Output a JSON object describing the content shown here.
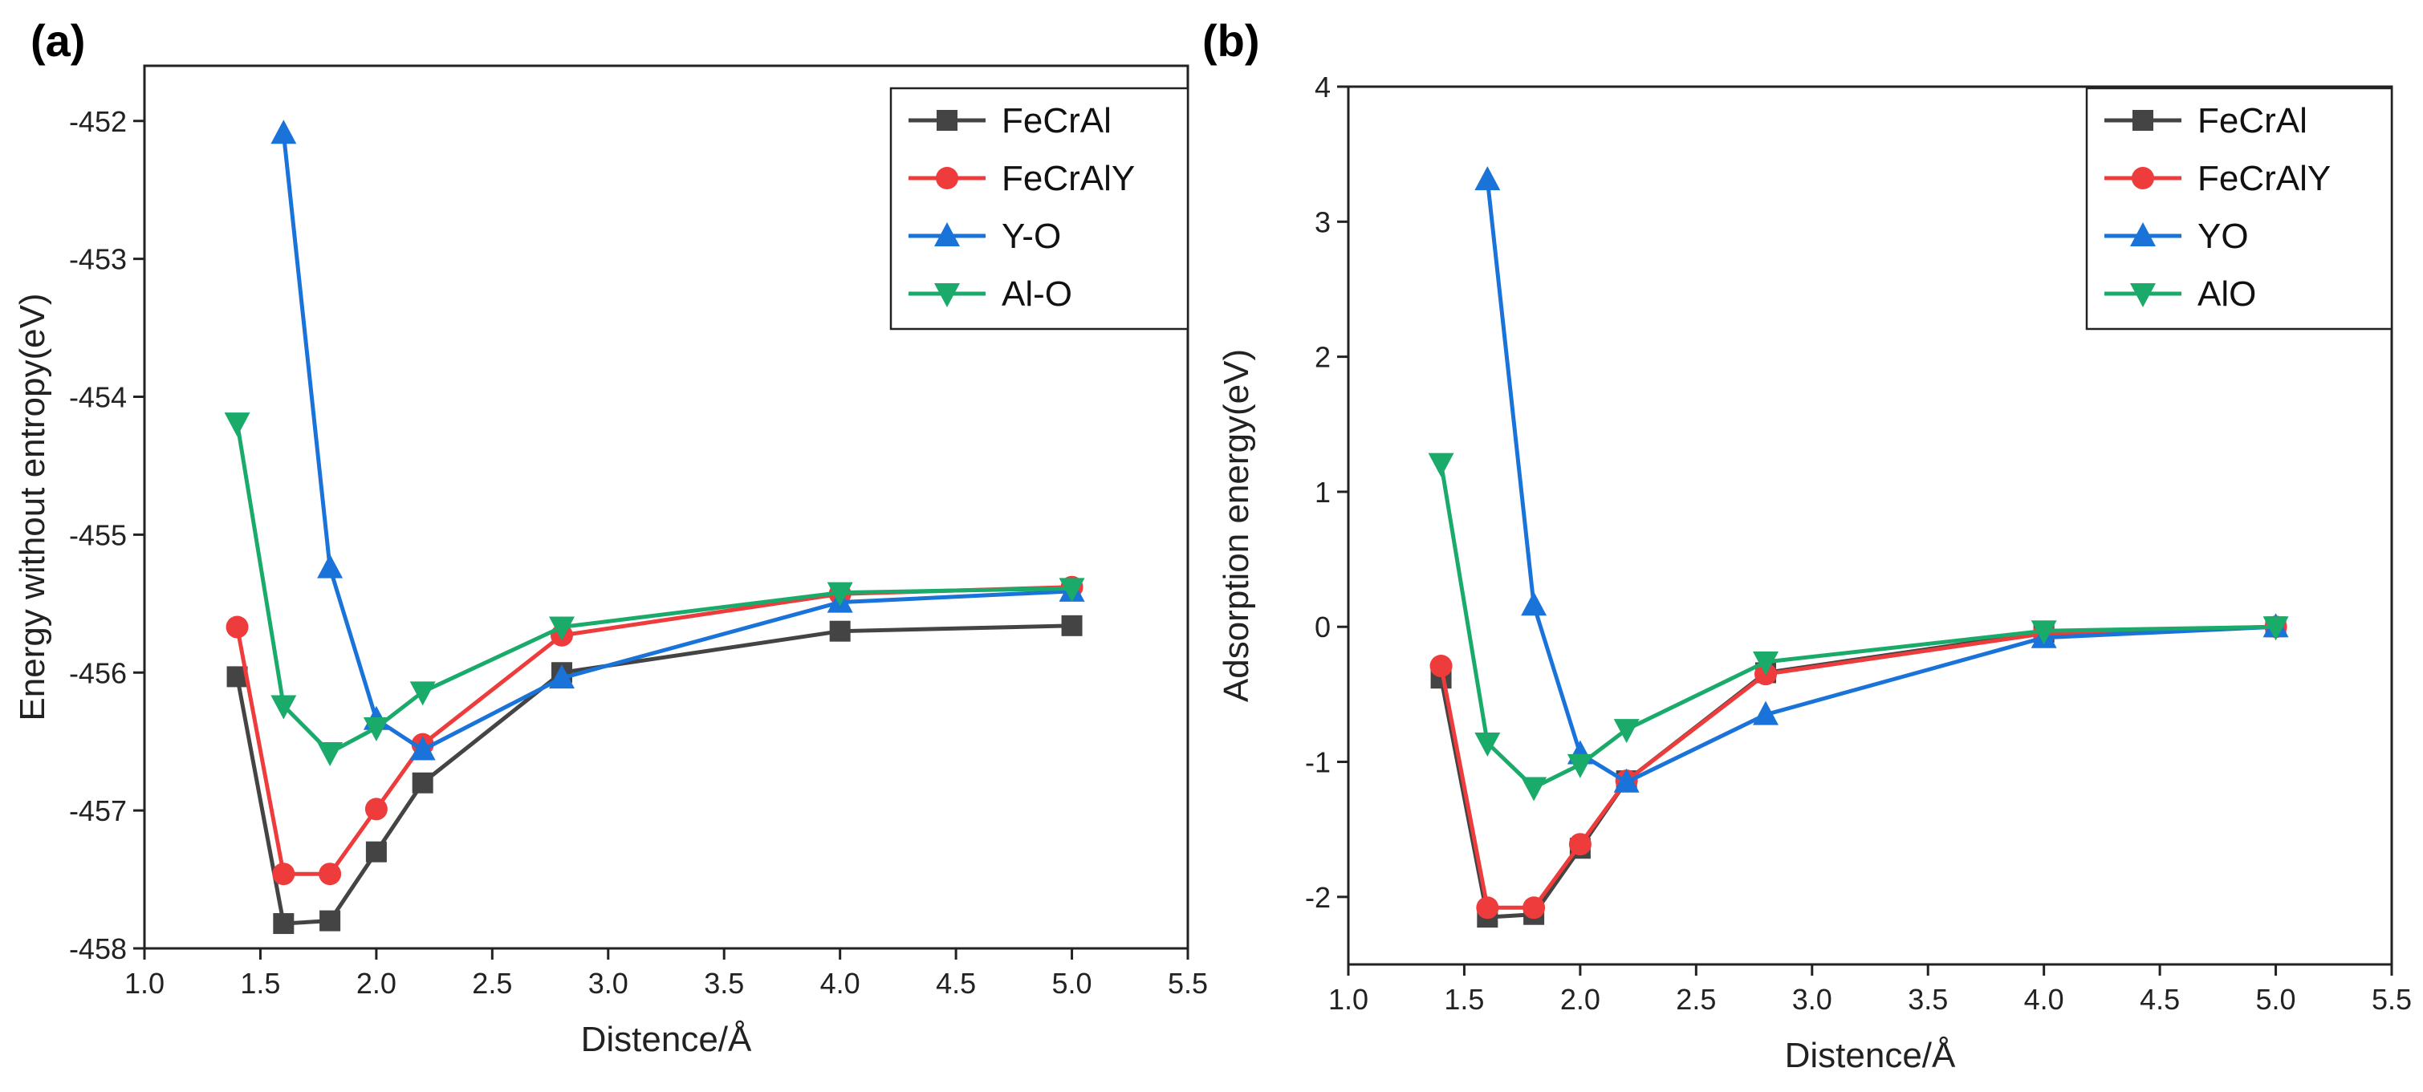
{
  "chart_data": [
    {
      "panel_label": "(a)",
      "type": "line",
      "xlabel": "Distence/Å",
      "ylabel": "Energy  without entropy(eV)",
      "xlim": [
        1.0,
        5.5
      ],
      "ylim": [
        -458.0,
        -451.6
      ],
      "xticks": [
        1.0,
        1.5,
        2.0,
        2.5,
        3.0,
        3.5,
        4.0,
        4.5,
        5.0,
        5.5
      ],
      "yticks": [
        -458,
        -457,
        -456,
        -455,
        -454,
        -453,
        -452
      ],
      "xtick_labels": [
        "1.0",
        "1.5",
        "2.0",
        "2.5",
        "3.0",
        "3.5",
        "4.0",
        "4.5",
        "5.0",
        "5.5"
      ],
      "ytick_labels": [
        "-458",
        "-457",
        "-456",
        "-455",
        "-454",
        "-453",
        "-452"
      ],
      "legend_position": "top-right",
      "series": [
        {
          "name": "FeCrAl",
          "color": "#444444",
          "marker": "square",
          "x": [
            1.4,
            1.6,
            1.8,
            2.0,
            2.2,
            2.8,
            4.0,
            5.0
          ],
          "y": [
            -456.03,
            -457.82,
            -457.8,
            -457.3,
            -456.8,
            -456.0,
            -455.7,
            -455.66
          ]
        },
        {
          "name": "FeCrAlY",
          "color": "#ee3b3b",
          "marker": "circle",
          "x": [
            1.4,
            1.6,
            1.8,
            2.0,
            2.2,
            2.8,
            4.0,
            5.0
          ],
          "y": [
            -455.67,
            -457.46,
            -457.46,
            -456.99,
            -456.52,
            -455.73,
            -455.43,
            -455.38
          ]
        },
        {
          "name": "Y-O",
          "color": "#1a73d9",
          "marker": "triangle-up",
          "x": [
            1.6,
            1.8,
            2.0,
            2.2,
            2.8,
            4.0,
            5.0
          ],
          "y": [
            -452.09,
            -455.24,
            -456.34,
            -456.56,
            -456.04,
            -455.49,
            -455.41
          ]
        },
        {
          "name": "Al-O",
          "color": "#1aab6b",
          "marker": "triangle-down",
          "x": [
            1.4,
            1.6,
            1.8,
            2.0,
            2.2,
            2.8,
            4.0,
            5.0
          ],
          "y": [
            -454.19,
            -456.24,
            -456.58,
            -456.4,
            -456.14,
            -455.67,
            -455.42,
            -455.39
          ]
        }
      ]
    },
    {
      "panel_label": "(b)",
      "type": "line",
      "xlabel": "Distence/Å",
      "ylabel": "Adsorption energy(eV)",
      "xlim": [
        1.0,
        5.5
      ],
      "ylim": [
        -2.5,
        4.0
      ],
      "xticks": [
        1.0,
        1.5,
        2.0,
        2.5,
        3.0,
        3.5,
        4.0,
        4.5,
        5.0,
        5.5
      ],
      "yticks": [
        -2,
        -1,
        0,
        1,
        2,
        3,
        4
      ],
      "xtick_labels": [
        "1.0",
        "1.5",
        "2.0",
        "2.5",
        "3.0",
        "3.5",
        "4.0",
        "4.5",
        "5.0",
        "5.5"
      ],
      "ytick_labels": [
        "-2",
        "-1",
        "0",
        "1",
        "2",
        "3",
        "4"
      ],
      "legend_position": "top-right",
      "series": [
        {
          "name": "FeCrAl",
          "color": "#444444",
          "marker": "square",
          "x": [
            1.4,
            1.6,
            1.8,
            2.0,
            2.2,
            2.8,
            4.0,
            5.0
          ],
          "y": [
            -0.38,
            -2.15,
            -2.13,
            -1.64,
            -1.14,
            -0.34,
            -0.04,
            0.0
          ]
        },
        {
          "name": "FeCrAlY",
          "color": "#ee3b3b",
          "marker": "circle",
          "x": [
            1.4,
            1.6,
            1.8,
            2.0,
            2.2,
            2.8,
            4.0,
            5.0
          ],
          "y": [
            -0.29,
            -2.08,
            -2.08,
            -1.61,
            -1.14,
            -0.35,
            -0.05,
            0.0
          ]
        },
        {
          "name": "YO",
          "color": "#1a73d9",
          "marker": "triangle-up",
          "x": [
            1.6,
            1.8,
            2.0,
            2.2,
            2.8,
            4.0,
            5.0
          ],
          "y": [
            3.31,
            0.16,
            -0.94,
            -1.15,
            -0.65,
            -0.08,
            0.0
          ]
        },
        {
          "name": "AlO",
          "color": "#1aab6b",
          "marker": "triangle-down",
          "x": [
            1.4,
            1.6,
            1.8,
            2.0,
            2.2,
            2.8,
            4.0,
            5.0
          ],
          "y": [
            1.21,
            -0.86,
            -1.19,
            -1.02,
            -0.76,
            -0.26,
            -0.03,
            0.0
          ]
        }
      ]
    }
  ]
}
